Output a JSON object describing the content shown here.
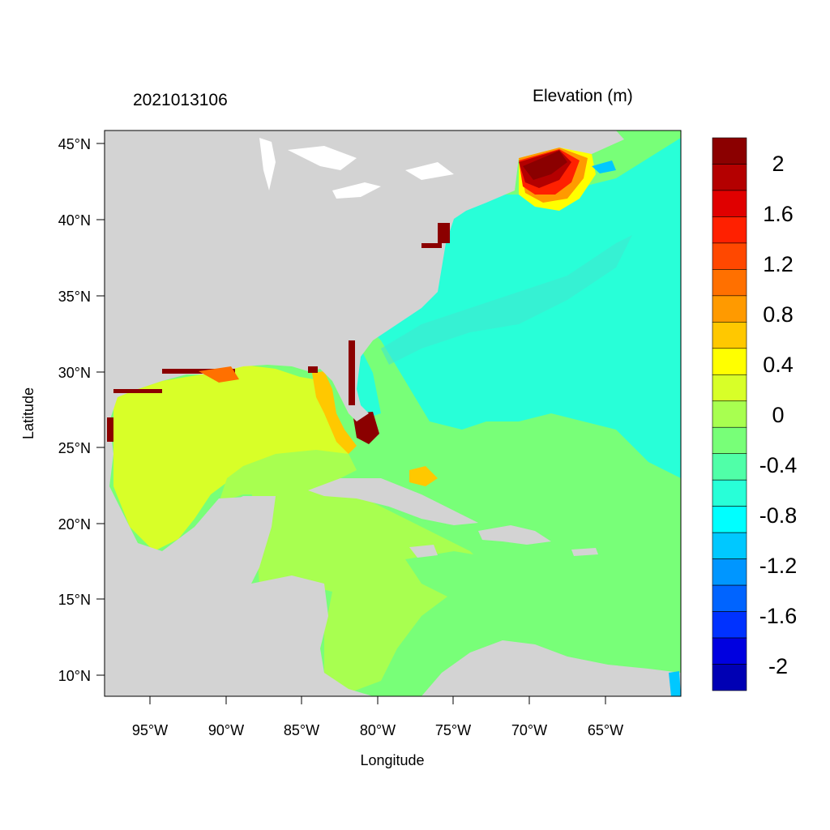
{
  "title": {
    "datetime": "2021013106",
    "variable": "Elevation (m)"
  },
  "axes": {
    "xlabel": "Longitude",
    "ylabel": "Latitude",
    "xticks": [
      "95°W",
      "90°W",
      "85°W",
      "80°W",
      "75°W",
      "70°W",
      "65°W"
    ],
    "yticks": [
      "45°N",
      "40°N",
      "35°N",
      "30°N",
      "25°N",
      "20°N",
      "15°N",
      "10°N"
    ]
  },
  "colorbar": {
    "labels": [
      "2",
      "1.6",
      "1.2",
      "0.8",
      "0.4",
      "0",
      "-0.4",
      "-0.8",
      "-1.2",
      "-1.6",
      "-2"
    ],
    "colors": [
      "#8b0000",
      "#b40000",
      "#e00000",
      "#ff2000",
      "#ff4800",
      "#ff7000",
      "#ff9a00",
      "#ffc800",
      "#ffff00",
      "#d8ff28",
      "#a8ff50",
      "#78ff78",
      "#50ffa8",
      "#28ffd8",
      "#00ffff",
      "#00c8ff",
      "#0096ff",
      "#0064ff",
      "#0032ff",
      "#0000e0",
      "#0000b4"
    ]
  },
  "colors": {
    "land": "#d3d3d3",
    "ocean_neutral": "#78ff78",
    "ocean_neg": "#28ffd8",
    "gulf": "#d8ff28",
    "carib": "#a8ff50"
  }
}
